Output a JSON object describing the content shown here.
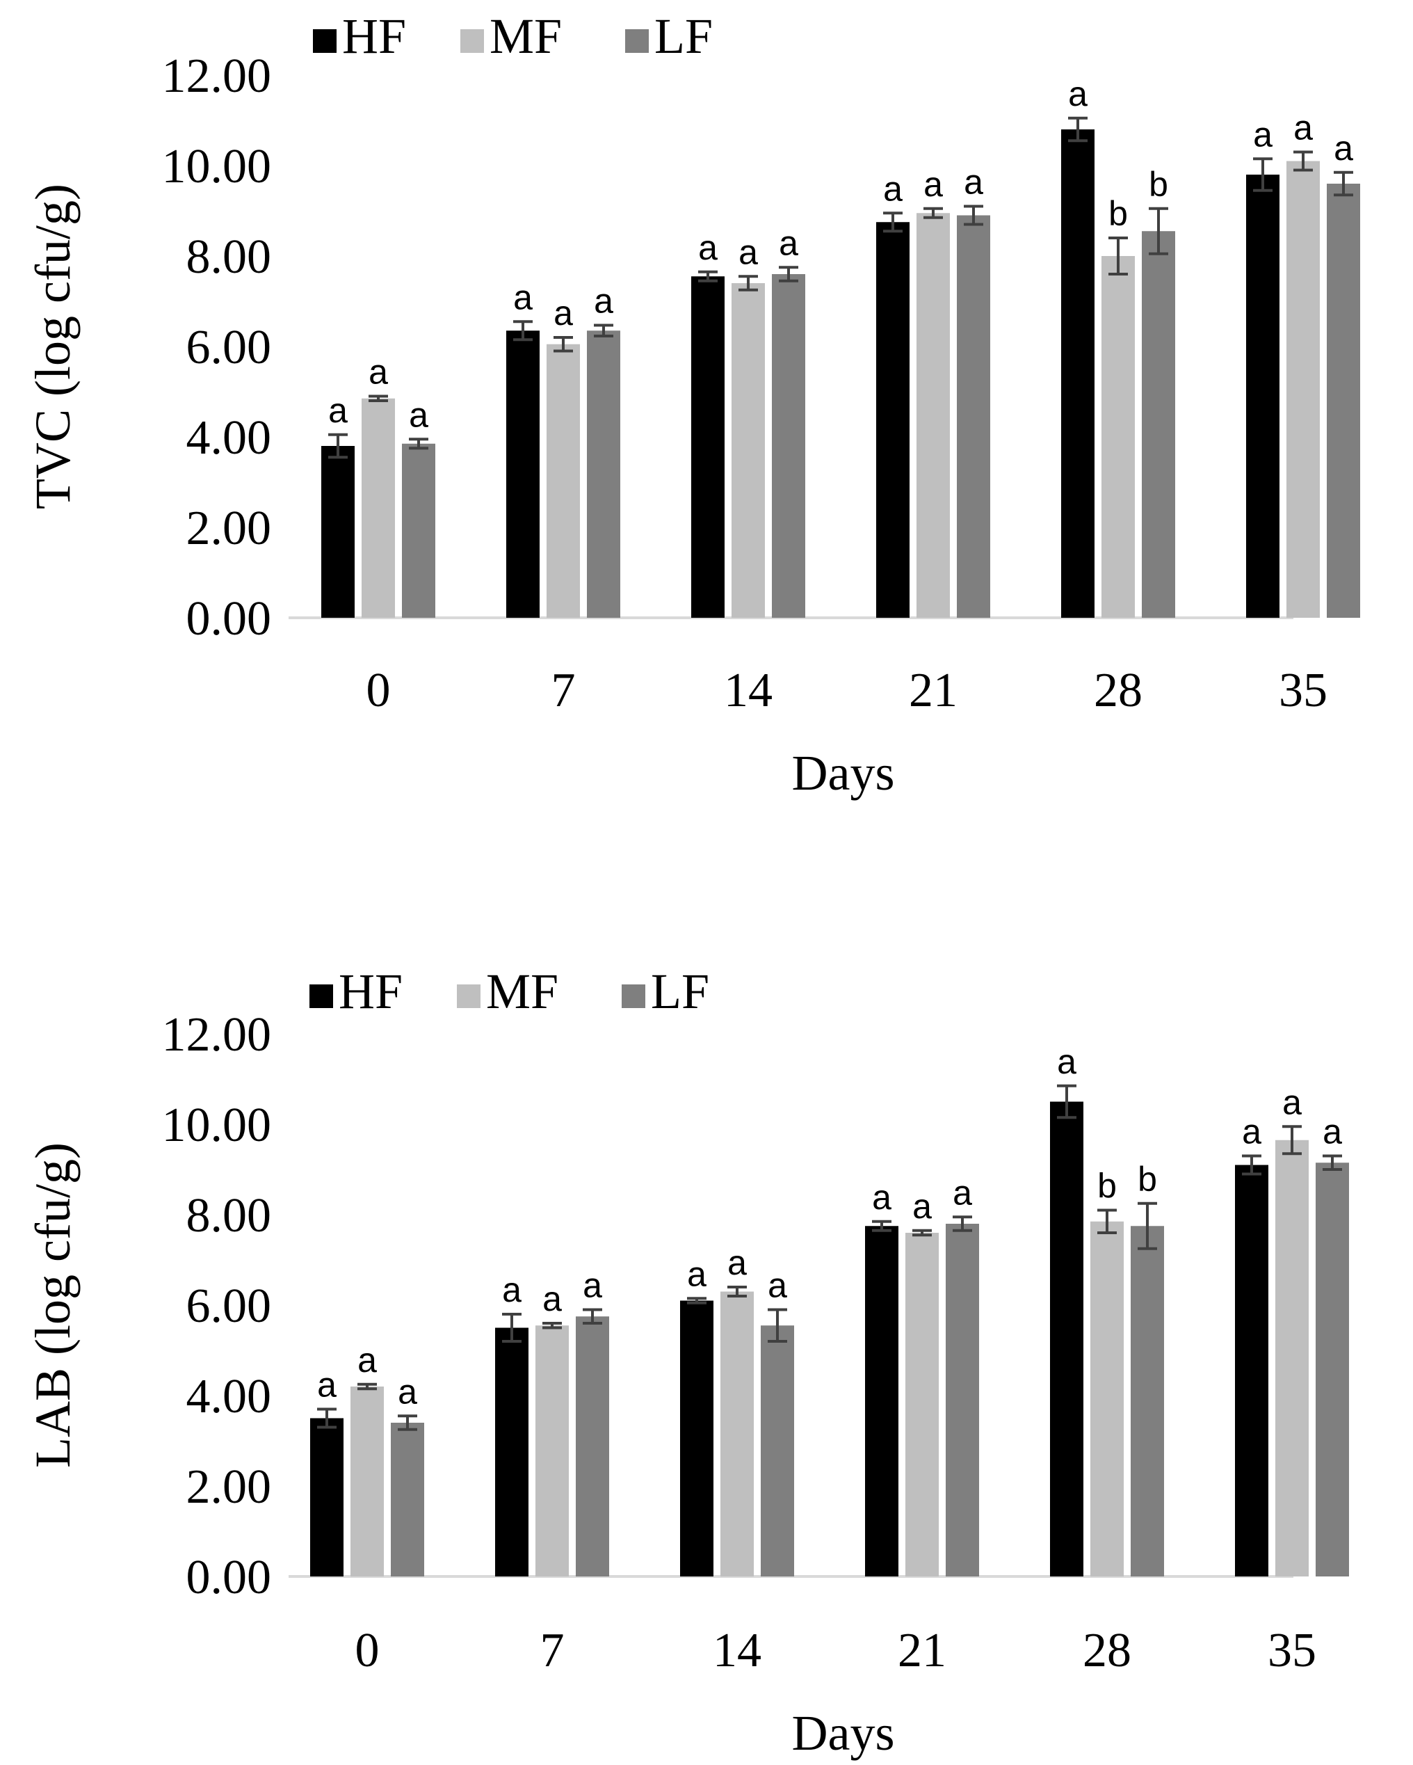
{
  "chart_data": [
    {
      "id": "tvc",
      "type": "bar",
      "title": "",
      "xlabel": "Days",
      "ylabel": "TVC (log cfu/g)",
      "categories": [
        "0",
        "7",
        "14",
        "21",
        "28",
        "35"
      ],
      "ylim": [
        0,
        12
      ],
      "yticks": [
        "0.00",
        "2.00",
        "4.00",
        "6.00",
        "8.00",
        "10.00",
        "12.00"
      ],
      "legend": "top-left",
      "series": [
        {
          "name": "HF",
          "color": "#000000",
          "values": [
            3.8,
            6.35,
            7.55,
            8.75,
            10.8,
            9.8
          ],
          "errors": [
            0.25,
            0.2,
            0.1,
            0.2,
            0.25,
            0.35
          ],
          "letters": [
            "a",
            "a",
            "a",
            "a",
            "a",
            "a"
          ]
        },
        {
          "name": "MF",
          "color": "#bfbfbf",
          "values": [
            4.85,
            6.05,
            7.4,
            8.95,
            8.0,
            10.1
          ],
          "errors": [
            0.05,
            0.15,
            0.15,
            0.1,
            0.4,
            0.2
          ],
          "letters": [
            "a",
            "a",
            "a",
            "a",
            "b",
            "a"
          ]
        },
        {
          "name": "LF",
          "color": "#7f7f7f",
          "values": [
            3.85,
            6.35,
            7.6,
            8.9,
            8.55,
            9.6
          ],
          "errors": [
            0.1,
            0.12,
            0.15,
            0.2,
            0.5,
            0.25
          ],
          "letters": [
            "a",
            "a",
            "a",
            "a",
            "b",
            "a"
          ]
        }
      ]
    },
    {
      "id": "lab",
      "type": "bar",
      "title": "",
      "xlabel": "Days",
      "ylabel": "LAB (log cfu/g)",
      "categories": [
        "0",
        "7",
        "14",
        "21",
        "28",
        "35"
      ],
      "ylim": [
        0,
        12
      ],
      "yticks": [
        "0.00",
        "2.00",
        "4.00",
        "6.00",
        "8.00",
        "10.00",
        "12.00"
      ],
      "legend": "top-left",
      "series": [
        {
          "name": "HF",
          "color": "#000000",
          "values": [
            3.5,
            5.5,
            6.1,
            7.75,
            10.5,
            9.1
          ],
          "errors": [
            0.2,
            0.3,
            0.05,
            0.1,
            0.35,
            0.2
          ],
          "letters": [
            "a",
            "a",
            "a",
            "a",
            "a",
            "a"
          ]
        },
        {
          "name": "MF",
          "color": "#bfbfbf",
          "values": [
            4.2,
            5.55,
            6.3,
            7.6,
            7.85,
            9.65
          ],
          "errors": [
            0.05,
            0.05,
            0.1,
            0.05,
            0.25,
            0.3
          ],
          "letters": [
            "a",
            "a",
            "a",
            "a",
            "b",
            "a"
          ]
        },
        {
          "name": "LF",
          "color": "#7f7f7f",
          "values": [
            3.4,
            5.75,
            5.55,
            7.8,
            7.75,
            9.15
          ],
          "errors": [
            0.15,
            0.15,
            0.35,
            0.15,
            0.5,
            0.15
          ],
          "letters": [
            "a",
            "a",
            "a",
            "a",
            "b",
            "a"
          ]
        }
      ]
    }
  ]
}
